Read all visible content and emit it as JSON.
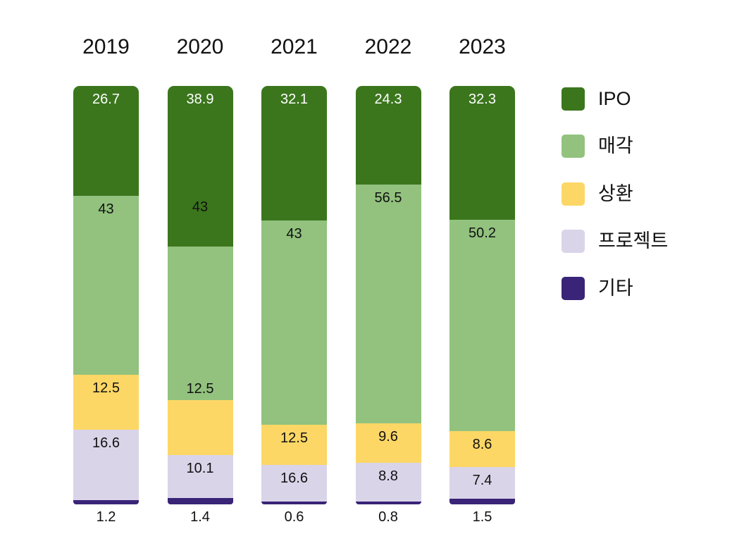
{
  "chart_data": {
    "type": "bar",
    "subtype": "stacked-100pct-column",
    "title": "",
    "xlabel": "",
    "ylabel": "",
    "grid": false,
    "legend_position": "right",
    "categories": [
      "2019",
      "2020",
      "2021",
      "2022",
      "2023"
    ],
    "series": [
      {
        "name": "IPO",
        "color": "#3b761d",
        "label_color": "#ffffff",
        "values": [
          26.7,
          38.9,
          32.1,
          24.3,
          32.3
        ]
      },
      {
        "name": "매각",
        "color": "#92c27e",
        "label_color": "#111111",
        "values": [
          43,
          43,
          43,
          56.5,
          50.2
        ]
      },
      {
        "name": "상환",
        "color": "#fcd765",
        "label_color": "#111111",
        "values": [
          12.5,
          12.5,
          12.5,
          9.6,
          8.6
        ]
      },
      {
        "name": "프로젝트",
        "color": "#dad4e9",
        "label_color": "#111111",
        "values": [
          16.6,
          10.1,
          16.6,
          8.8,
          7.4
        ]
      },
      {
        "name": "기타",
        "color": "#392478",
        "label_color": "#111111",
        "values": [
          1.2,
          1.4,
          0.6,
          0.8,
          1.5
        ]
      }
    ],
    "drawn_segment_pct": [
      [
        26.18,
        42.84,
        13.13,
        16.84,
        1.01
      ],
      [
        38.38,
        36.7,
        13.13,
        10.35,
        1.44
      ],
      [
        32.15,
        48.82,
        9.6,
        8.75,
        0.68
      ],
      [
        23.57,
        57.07,
        9.43,
        9.26,
        0.67
      ],
      [
        31.99,
        50.51,
        8.59,
        7.49,
        1.42
      ]
    ],
    "label_top_pct_overrides": [
      {
        "bar": 1,
        "series": 1,
        "top_pct": 27.1
      },
      {
        "bar": 1,
        "series": 2,
        "top_pct": 70.5
      }
    ],
    "last_series_labels_below_bar": true
  }
}
